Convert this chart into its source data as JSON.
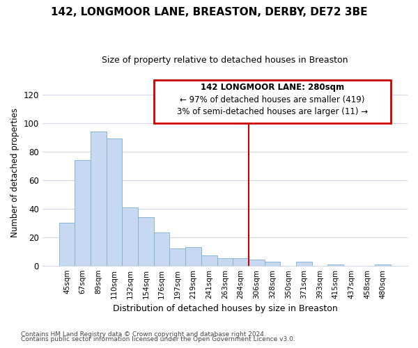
{
  "title": "142, LONGMOOR LANE, BREASTON, DERBY, DE72 3BE",
  "subtitle": "Size of property relative to detached houses in Breaston",
  "xlabel": "Distribution of detached houses by size in Breaston",
  "ylabel": "Number of detached properties",
  "footnote1": "Contains HM Land Registry data © Crown copyright and database right 2024.",
  "footnote2": "Contains public sector information licensed under the Open Government Licence v3.0.",
  "annotation_title": "142 LONGMOOR LANE: 280sqm",
  "annotation_line1": "← 97% of detached houses are smaller (419)",
  "annotation_line2": "3% of semi-detached houses are larger (11) →",
  "bar_labels": [
    "45sqm",
    "67sqm",
    "89sqm",
    "110sqm",
    "132sqm",
    "154sqm",
    "176sqm",
    "197sqm",
    "219sqm",
    "241sqm",
    "263sqm",
    "284sqm",
    "306sqm",
    "328sqm",
    "350sqm",
    "371sqm",
    "393sqm",
    "415sqm",
    "437sqm",
    "458sqm",
    "480sqm"
  ],
  "bar_values": [
    30,
    74,
    94,
    89,
    41,
    34,
    23,
    12,
    13,
    7,
    5,
    5,
    4,
    3,
    0,
    3,
    0,
    1,
    0,
    0,
    1
  ],
  "bar_color": "#c6d9f1",
  "bar_edge_color": "#7bafd4",
  "highlight_color": "#cc0000",
  "vline_index": 11,
  "ylim": [
    0,
    130
  ],
  "yticks": [
    0,
    20,
    40,
    60,
    80,
    100,
    120
  ],
  "bg_color": "#ffffff",
  "grid_color": "#d0d8e8",
  "annotation_box_color": "#cc0000",
  "title_fontsize": 11,
  "subtitle_fontsize": 9
}
